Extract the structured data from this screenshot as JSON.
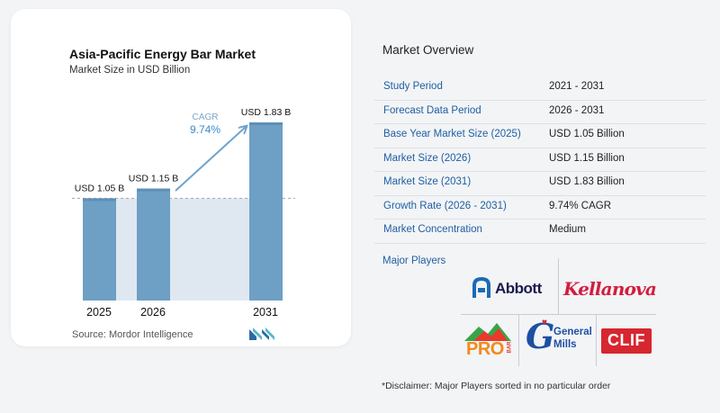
{
  "chart_data": {
    "type": "bar",
    "title": "Asia-Pacific Energy Bar Market",
    "subtitle": "Market Size in USD Billion",
    "categories": [
      "2025",
      "2026",
      "2031"
    ],
    "values": [
      1.05,
      1.15,
      1.83
    ],
    "value_labels": [
      "USD 1.05 B",
      "USD 1.15 B",
      "USD 1.83 B"
    ],
    "ylim": [
      0,
      1.83
    ],
    "xlabel": "",
    "ylabel": "",
    "grid": false,
    "reference_line": 1.05,
    "annotation": {
      "label": "CAGR",
      "value": "9.74%"
    },
    "colors": {
      "bar": "#6e9fc4",
      "bar_top": "#5e8fb6",
      "shade": "#dfe8f1",
      "arrow": "#6ea3cf",
      "cagr_label": "#7fa6c4",
      "cagr_value": "#3d8bc9"
    }
  },
  "source": "Source:  Mordor Intelligence",
  "overview": {
    "title": "Market Overview",
    "rows": [
      {
        "label": "Study Period",
        "value": "2021 - 2031"
      },
      {
        "label": "Forecast Data Period",
        "value": "2026 - 2031"
      },
      {
        "label": "Base Year Market Size (2025)",
        "value": "USD 1.05 Billion"
      },
      {
        "label": "Market Size (2026)",
        "value": "USD 1.15 Billion"
      },
      {
        "label": "Market Size (2031)",
        "value": "USD 1.83 Billion"
      },
      {
        "label": "Growth Rate (2026 - 2031)",
        "value": "9.74% CAGR"
      },
      {
        "label": "Market Concentration",
        "value": "Medium"
      }
    ],
    "players_label": "Major Players"
  },
  "players": {
    "abbott": "Abbott",
    "kellanova": "Kellanova",
    "probar_main": "PRO",
    "probar_side": "BAR",
    "general_mills_1": "General",
    "general_mills_2": "Mills",
    "clif": "CLIF"
  },
  "disclaimer": "*Disclaimer: Major Players sorted in no particular order"
}
